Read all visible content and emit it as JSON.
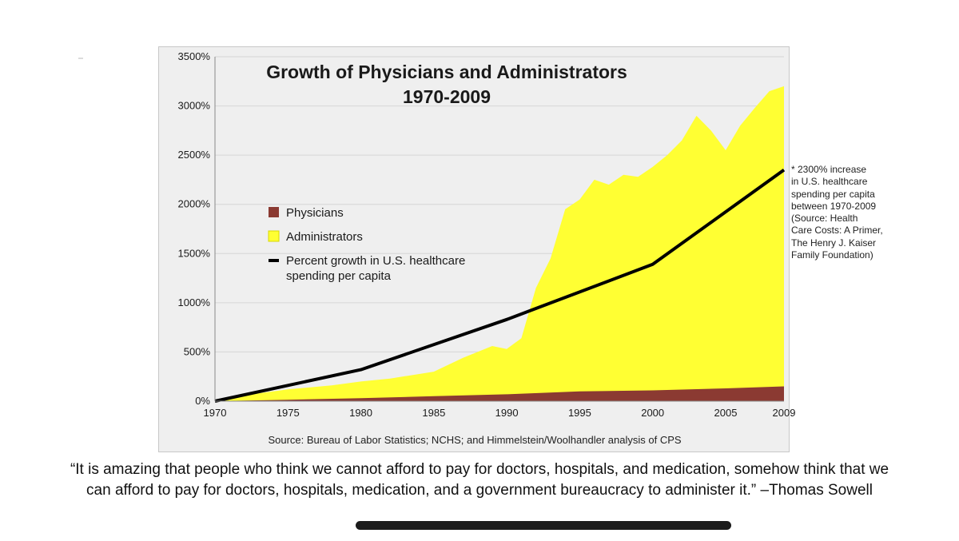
{
  "chart_data": {
    "type": "area",
    "title_line1": "Growth of Physicians and Administrators",
    "title_line2": "1970-2009",
    "xlabel": "",
    "ylabel": "",
    "xlim": [
      1970,
      2009
    ],
    "ylim": [
      0,
      3500
    ],
    "x_ticks": [
      "1970",
      "1975",
      "1980",
      "1985",
      "1990",
      "1995",
      "2000",
      "2005",
      "2009"
    ],
    "y_ticks": [
      "0%",
      "500%",
      "1000%",
      "1500%",
      "2000%",
      "2500%",
      "3000%",
      "3500%"
    ],
    "grid": "horizontal",
    "legend_position": "center-left",
    "series": [
      {
        "name": "Physicians",
        "kind": "area",
        "color": "#8b3a32",
        "x": [
          1970,
          1975,
          1980,
          1985,
          1990,
          1995,
          2000,
          2005,
          2009
        ],
        "y": [
          0,
          15,
          30,
          50,
          70,
          100,
          110,
          130,
          150
        ]
      },
      {
        "name": "Administrators",
        "kind": "area",
        "color": "#ffff33",
        "x": [
          1970,
          1972,
          1975,
          1978,
          1980,
          1982,
          1985,
          1987,
          1989,
          1990,
          1991,
          1992,
          1993,
          1994,
          1995,
          1996,
          1997,
          1998,
          1999,
          2000,
          2001,
          2002,
          2003,
          2004,
          2005,
          2006,
          2007,
          2008,
          2009
        ],
        "y": [
          0,
          60,
          120,
          160,
          200,
          230,
          300,
          440,
          560,
          530,
          640,
          1150,
          1450,
          1950,
          2050,
          2250,
          2200,
          2300,
          2280,
          2380,
          2500,
          2650,
          2900,
          2750,
          2550,
          2800,
          2980,
          3150,
          3200
        ]
      },
      {
        "name": "Percent growth in U.S. healthcare spending per capita",
        "kind": "line",
        "color": "#000000",
        "x": [
          1970,
          1980,
          1990,
          2000,
          2009
        ],
        "y": [
          0,
          320,
          830,
          1390,
          2350
        ]
      }
    ],
    "legend": [
      {
        "label": "Physicians",
        "color": "#8b3a32",
        "kind": "area"
      },
      {
        "label": "Administrators",
        "color": "#ffff33",
        "kind": "area"
      },
      {
        "label_line1": "Percent growth in U.S. healthcare",
        "label_line2": "spending per capita",
        "color": "#000000",
        "kind": "line"
      }
    ],
    "source": "Source: Bureau of Labor Statistics; NCHS; and Himmelstein/Woolhandler analysis of CPS"
  },
  "side_note": "* 2300% increase\nin U.S. healthcare\nspending per capita\nbetween 1970-2009\n(Source: Health\nCare Costs: A Primer,\nThe Henry J. Kaiser\nFamily Foundation)",
  "quote": "“It is amazing that people who think we cannot afford to pay for doctors, hospitals, and medication, somehow think that we\ncan afford to pay for doctors, hospitals, medication, and a government bureaucracy to administer it.” –Thomas Sowell"
}
